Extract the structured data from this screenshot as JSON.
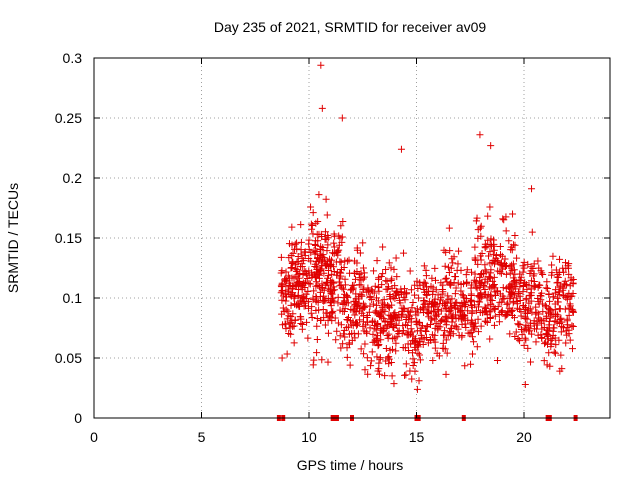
{
  "chart_data": {
    "type": "scatter",
    "title": "Day 235 of 2021, SRMTID for receiver av09",
    "xlabel": "GPS time / hours",
    "ylabel": "SRMTID / TECUs",
    "xlim": [
      0,
      24
    ],
    "ylim": [
      0,
      0.3
    ],
    "x_ticks": [
      0,
      5,
      10,
      15,
      20
    ],
    "x_tick_labels": [
      "0",
      "5",
      "10",
      "15",
      "20"
    ],
    "y_ticks": [
      0,
      0.05,
      0.1,
      0.15,
      0.2,
      0.25,
      0.3
    ],
    "y_tick_labels": [
      "0",
      "0.05",
      "0.1",
      "0.15",
      "0.2",
      "0.25",
      "0.3"
    ],
    "grid": true,
    "marker": "+",
    "color": "#e00000",
    "zero_markers_x": [
      8.6,
      8.8,
      11.1,
      11.2,
      11.3,
      12.0,
      15.0,
      15.1,
      17.2,
      21.1,
      21.2,
      22.4
    ],
    "series": [
      {
        "name": "SRMTID",
        "x": [
          8.75,
          9.2,
          10.55,
          10.62,
          11.55,
          14.3,
          17.95,
          18.45,
          20.35
        ],
        "y": [
          0.05,
          0.081,
          0.294,
          0.258,
          0.25,
          0.224,
          0.236,
          0.227,
          0.191
        ]
      }
    ],
    "clusters": [
      {
        "x0": 8.7,
        "x1": 9.2,
        "ymid": 0.1,
        "spread": 0.035,
        "n": 55
      },
      {
        "x0": 9.2,
        "x1": 10.0,
        "ymid": 0.11,
        "spread": 0.04,
        "n": 110
      },
      {
        "x0": 10.0,
        "x1": 10.9,
        "ymid": 0.12,
        "spread": 0.05,
        "n": 130
      },
      {
        "x0": 10.9,
        "x1": 11.6,
        "ymid": 0.11,
        "spread": 0.045,
        "n": 85
      },
      {
        "x0": 11.6,
        "x1": 12.5,
        "ymid": 0.095,
        "spread": 0.04,
        "n": 95
      },
      {
        "x0": 12.5,
        "x1": 13.5,
        "ymid": 0.085,
        "spread": 0.04,
        "n": 110
      },
      {
        "x0": 13.5,
        "x1": 14.5,
        "ymid": 0.085,
        "spread": 0.04,
        "n": 110
      },
      {
        "x0": 14.5,
        "x1": 15.3,
        "ymid": 0.075,
        "spread": 0.035,
        "n": 80
      },
      {
        "x0": 15.3,
        "x1": 16.2,
        "ymid": 0.09,
        "spread": 0.035,
        "n": 90
      },
      {
        "x0": 16.2,
        "x1": 17.0,
        "ymid": 0.1,
        "spread": 0.04,
        "n": 90
      },
      {
        "x0": 17.0,
        "x1": 17.7,
        "ymid": 0.09,
        "spread": 0.035,
        "n": 70
      },
      {
        "x0": 17.7,
        "x1": 18.6,
        "ymid": 0.115,
        "spread": 0.045,
        "n": 110
      },
      {
        "x0": 18.6,
        "x1": 19.6,
        "ymid": 0.11,
        "spread": 0.04,
        "n": 110
      },
      {
        "x0": 19.6,
        "x1": 20.5,
        "ymid": 0.095,
        "spread": 0.04,
        "n": 95
      },
      {
        "x0": 20.5,
        "x1": 21.5,
        "ymid": 0.085,
        "spread": 0.04,
        "n": 100
      },
      {
        "x0": 21.5,
        "x1": 22.3,
        "ymid": 0.095,
        "spread": 0.04,
        "n": 85
      }
    ]
  }
}
